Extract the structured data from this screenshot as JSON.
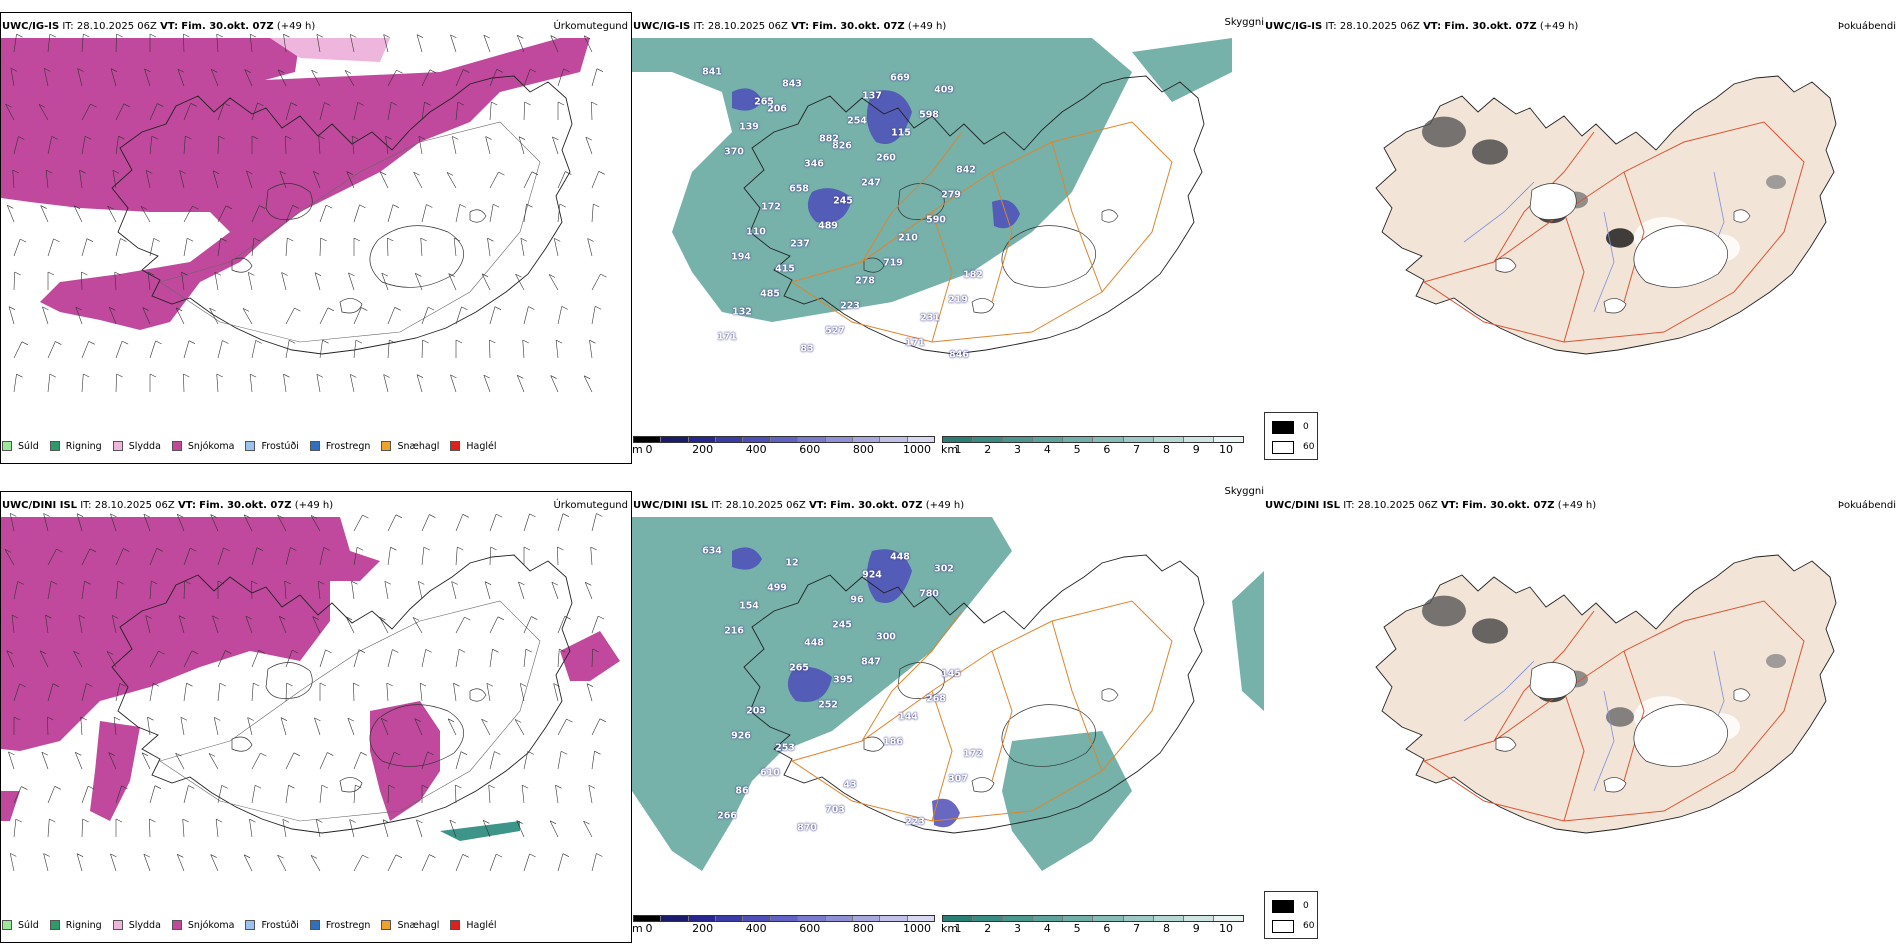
{
  "colors": {
    "snow": "#c0499d",
    "sleet": "#eeb6dc",
    "green_teal": "#3d9488",
    "land_tan": "#f2e4d7",
    "road_orange": "#e0842c",
    "road_red": "#dd5533",
    "river_blue": "#7f8fe0"
  },
  "rows": [
    {
      "model": "UWC/IG-IS",
      "it_label": "IT:",
      "it_value": "28.10.2025 06Z",
      "vt_label": "VT:",
      "vt_value": "Fim. 30.okt. 07Z",
      "lead": "(+49 h)",
      "precip_panel": {
        "right_label": "Úrkomutegund"
      },
      "vis_panel": {
        "right_label": "Skyggni",
        "spot_values": [
          "841",
          "206",
          "826",
          "247",
          "590",
          "194",
          "485",
          "527",
          "669",
          "598",
          "370",
          "658",
          "489",
          "719",
          "219",
          "171",
          "843",
          "254",
          "260",
          "279",
          "110",
          "415",
          "223",
          "171",
          "409",
          "139",
          "346",
          "245",
          "210",
          "182",
          "132",
          "83",
          "137",
          "115",
          "842",
          "172",
          "237",
          "278",
          "231",
          "846",
          "265",
          "882"
        ]
      },
      "cloud_panel": {
        "right_label": "Þokuábendi"
      }
    },
    {
      "model": "UWC/DINI ISL",
      "it_label": "IT:",
      "it_value": "28.10.2025 06Z",
      "vt_label": "VT:",
      "vt_value": "Fim. 30.okt. 07Z",
      "lead": "(+49 h)",
      "precip_panel": {
        "right_label": "Úrkomutegund"
      },
      "vis_panel": {
        "right_label": "Skyggni",
        "spot_values": [
          "634",
          "499",
          "245",
          "847",
          "268",
          "926",
          "610",
          "703",
          "448",
          "780",
          "216",
          "265",
          "252",
          "186",
          "307",
          "266",
          "12",
          "96",
          "300",
          "145",
          "203",
          "253",
          "43",
          "223",
          "302",
          "154",
          "448",
          "395",
          "144",
          "172",
          "86",
          "870",
          "924"
        ]
      },
      "cloud_panel": {
        "right_label": "Þokuábendi"
      }
    }
  ],
  "precip_legend": [
    {
      "label": "Súld",
      "color": "#9be89b"
    },
    {
      "label": "Rigning",
      "color": "#2e9a6a"
    },
    {
      "label": "Slydda",
      "color": "#eeb6dc"
    },
    {
      "label": "Snjókoma",
      "color": "#c0499d"
    },
    {
      "label": "Frostúði",
      "color": "#9cc2ee"
    },
    {
      "label": "Frostregn",
      "color": "#2f6fbf"
    },
    {
      "label": "Snæhagl",
      "color": "#efa12c"
    },
    {
      "label": "Haglél",
      "color": "#e21d1d"
    }
  ],
  "height_scale": {
    "unit": "m",
    "ticks": [
      "0",
      "200",
      "400",
      "600",
      "800",
      "1000"
    ],
    "colors": [
      "#000000",
      "#1b1b6b",
      "#26268e",
      "#3b3ba6",
      "#4e4eb8",
      "#6262c4",
      "#7a7acd",
      "#9090d6",
      "#a8a8df",
      "#c0c0e8",
      "#d8d8f1"
    ]
  },
  "visibility_scale": {
    "unit": "km",
    "ticks": [
      "1",
      "2",
      "3",
      "4",
      "5",
      "6",
      "7",
      "8",
      "9",
      "10"
    ],
    "colors": [
      "#2a7e74",
      "#3a8b81",
      "#4b978e",
      "#5ea39b",
      "#72afa8",
      "#88bcb6",
      "#9fc9c4",
      "#b7d7d3",
      "#d0e5e2",
      "#e9f3f1"
    ]
  },
  "cloud_scale": {
    "items": [
      {
        "label": "0",
        "color": "#000000"
      },
      {
        "label": "60",
        "color": "#ffffff"
      }
    ]
  }
}
